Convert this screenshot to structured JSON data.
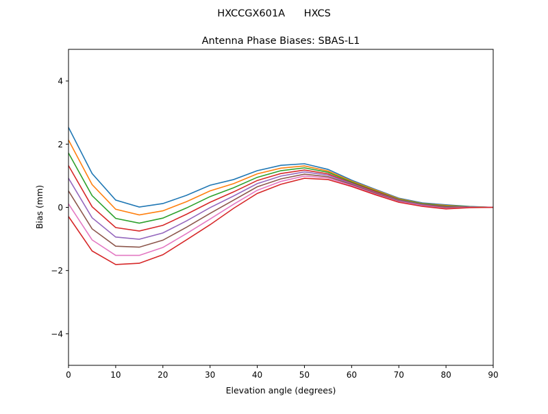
{
  "chart_data": {
    "type": "line",
    "suptitle": "HXCCGX601A      HXCS",
    "title": "Antenna Phase Biases: SBAS-L1",
    "xlabel": "Elevation angle (degrees)",
    "ylabel": "Bias (mm)",
    "xlim": [
      0,
      90
    ],
    "ylim": [
      -5,
      5
    ],
    "xticks": [
      0,
      10,
      20,
      30,
      40,
      50,
      60,
      70,
      80,
      90
    ],
    "yticks": [
      -4,
      -2,
      0,
      2,
      4
    ],
    "ytick_labels": [
      "−4",
      "−2",
      "0",
      "2",
      "4"
    ],
    "grid": false,
    "x": [
      0,
      5,
      10,
      15,
      20,
      25,
      30,
      35,
      40,
      45,
      50,
      55,
      60,
      65,
      70,
      75,
      80,
      85,
      90
    ],
    "series": [
      {
        "color": "#1f77b4",
        "values": [
          2.53,
          1.07,
          0.23,
          0.01,
          0.12,
          0.38,
          0.7,
          0.88,
          1.16,
          1.33,
          1.38,
          1.2,
          0.86,
          0.57,
          0.29,
          0.14,
          0.08,
          0.03,
          0
        ]
      },
      {
        "color": "#ff7f0e",
        "values": [
          2.13,
          0.72,
          -0.06,
          -0.24,
          -0.11,
          0.18,
          0.52,
          0.75,
          1.06,
          1.24,
          1.31,
          1.15,
          0.83,
          0.55,
          0.27,
          0.12,
          0.06,
          0.02,
          0
        ]
      },
      {
        "color": "#2ca02c",
        "values": [
          1.72,
          0.37,
          -0.35,
          -0.5,
          -0.34,
          -0.02,
          0.34,
          0.62,
          0.95,
          1.16,
          1.25,
          1.11,
          0.8,
          0.52,
          0.25,
          0.11,
          0.04,
          0.02,
          0
        ]
      },
      {
        "color": "#d62728",
        "values": [
          1.32,
          0.02,
          -0.64,
          -0.75,
          -0.57,
          -0.22,
          0.16,
          0.49,
          0.85,
          1.07,
          1.18,
          1.06,
          0.77,
          0.5,
          0.23,
          0.09,
          0.02,
          0.01,
          0
        ]
      },
      {
        "color": "#9467bd",
        "values": [
          0.92,
          -0.33,
          -0.94,
          -1.01,
          -0.81,
          -0.43,
          -0.01,
          0.36,
          0.75,
          0.99,
          1.12,
          1.02,
          0.75,
          0.47,
          0.22,
          0.08,
          0.01,
          0.01,
          0
        ]
      },
      {
        "color": "#8c564b",
        "values": [
          0.52,
          -0.68,
          -1.23,
          -1.26,
          -1.04,
          -0.63,
          -0.19,
          0.23,
          0.65,
          0.9,
          1.05,
          0.97,
          0.72,
          0.45,
          0.2,
          0.06,
          0.0,
          0.0,
          0
        ]
      },
      {
        "color": "#e377c2",
        "values": [
          0.11,
          -1.03,
          -1.52,
          -1.52,
          -1.27,
          -0.83,
          -0.37,
          0.1,
          0.54,
          0.82,
          0.99,
          0.93,
          0.69,
          0.42,
          0.18,
          0.05,
          -0.03,
          0.0,
          0
        ]
      },
      {
        "color": "#d62728",
        "values": [
          -0.29,
          -1.38,
          -1.81,
          -1.77,
          -1.5,
          -1.03,
          -0.55,
          -0.03,
          0.44,
          0.73,
          0.92,
          0.88,
          0.66,
          0.4,
          0.16,
          0.03,
          -0.05,
          -0.01,
          0
        ]
      }
    ]
  }
}
